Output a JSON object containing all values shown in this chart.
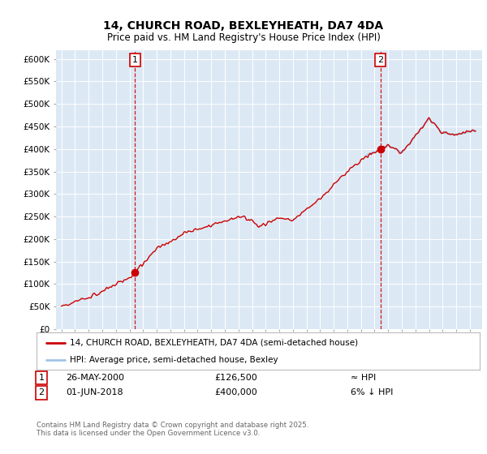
{
  "title1": "14, CHURCH ROAD, BEXLEYHEATH, DA7 4DA",
  "title2": "Price paid vs. HM Land Registry's House Price Index (HPI)",
  "bg_color": "#dce9f5",
  "fig_bg_color": "#ffffff",
  "hpi_color": "#a0c4e8",
  "price_color": "#cc0000",
  "ylim": [
    0,
    620000
  ],
  "yticks": [
    0,
    50000,
    100000,
    150000,
    200000,
    250000,
    300000,
    350000,
    400000,
    450000,
    500000,
    550000,
    600000
  ],
  "ytick_labels": [
    "£0",
    "£50K",
    "£100K",
    "£150K",
    "£200K",
    "£250K",
    "£300K",
    "£350K",
    "£400K",
    "£450K",
    "£500K",
    "£550K",
    "£600K"
  ],
  "sale1_date": 2000.4,
  "sale1_price": 126500,
  "sale1_label": "1",
  "sale2_date": 2018.42,
  "sale2_price": 400000,
  "sale2_label": "2",
  "legend_line1": "14, CHURCH ROAD, BEXLEYHEATH, DA7 4DA (semi-detached house)",
  "legend_line2": "HPI: Average price, semi-detached house, Bexley",
  "note1_label": "1",
  "note1_date": "26-MAY-2000",
  "note1_price": "£126,500",
  "note1_hpi": "≈ HPI",
  "note2_label": "2",
  "note2_date": "01-JUN-2018",
  "note2_price": "£400,000",
  "note2_hpi": "6% ↓ HPI",
  "copyright": "Contains HM Land Registry data © Crown copyright and database right 2025.\nThis data is licensed under the Open Government Licence v3.0.",
  "xlim_left": 1994.6,
  "xlim_right": 2025.9
}
